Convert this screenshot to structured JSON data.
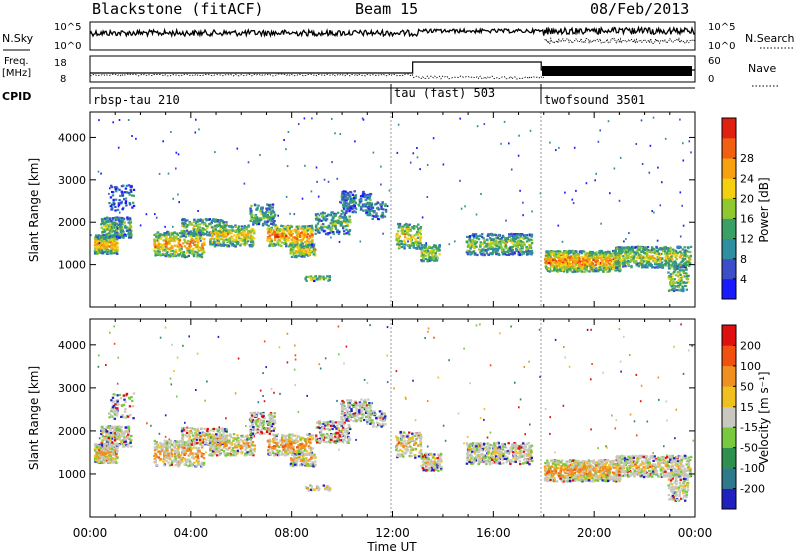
{
  "header": {
    "station": "Blackstone (fitACF)",
    "beam": "Beam 15",
    "date": "08/Feb/2013"
  },
  "noise_panel": {
    "left_label": "N.Sky",
    "right_label": "N.Search",
    "left_ticks": [
      "10^5",
      "10^0"
    ],
    "right_ticks": [
      "10^5",
      "10^0"
    ]
  },
  "freq_panel": {
    "left_label_1": "Freq.",
    "left_label_2": "[MHz]",
    "left_ticks": [
      "18",
      "8"
    ],
    "right_label": "Nave",
    "right_ticks": [
      "60",
      "0"
    ]
  },
  "cpid_panel": {
    "label": "CPID",
    "segments": [
      {
        "label": "rbsp-tau 210",
        "start_hour": 0
      },
      {
        "label": "tau (fast) 503",
        "start_hour": 12
      },
      {
        "label": "twofsound 3501",
        "start_hour": 18
      }
    ]
  },
  "chart_data": [
    {
      "type": "heatmap",
      "name": "power",
      "ylabel": "Slant Range [km]",
      "xlabel": "",
      "x_range_hours": [
        0,
        24
      ],
      "ylim": [
        0,
        4600
      ],
      "y_ticks": [
        "1000",
        "2000",
        "3000",
        "4000"
      ],
      "colorbar": {
        "label": "Power [dB]",
        "ticks": [
          "4",
          "8",
          "12",
          "16",
          "20",
          "24",
          "28"
        ],
        "colors": [
          "#1a1aff",
          "#3c4fc9",
          "#2f8fa0",
          "#3aa066",
          "#90c830",
          "#f5d010",
          "#f7a010",
          "#f06010",
          "#e02010"
        ]
      }
    },
    {
      "type": "heatmap",
      "name": "velocity",
      "ylabel": "Slant Range [km]",
      "xlabel": "Time UT",
      "x_range_hours": [
        0,
        24
      ],
      "x_ticks": [
        "00:00",
        "04:00",
        "08:00",
        "12:00",
        "16:00",
        "20:00",
        "00:00"
      ],
      "ylim": [
        0,
        4600
      ],
      "y_ticks": [
        "1000",
        "2000",
        "3000",
        "4000"
      ],
      "colorbar": {
        "label": "Velocity [m s⁻¹]",
        "ticks": [
          "200",
          "100",
          "50",
          "15",
          "-15",
          "-50",
          "-100",
          "-200"
        ],
        "colors": [
          "#2020c0",
          "#2f7a8a",
          "#2f8f4f",
          "#78c840",
          "#c8c8c0",
          "#f0c020",
          "#f09020",
          "#f05010",
          "#e01010"
        ]
      }
    }
  ]
}
